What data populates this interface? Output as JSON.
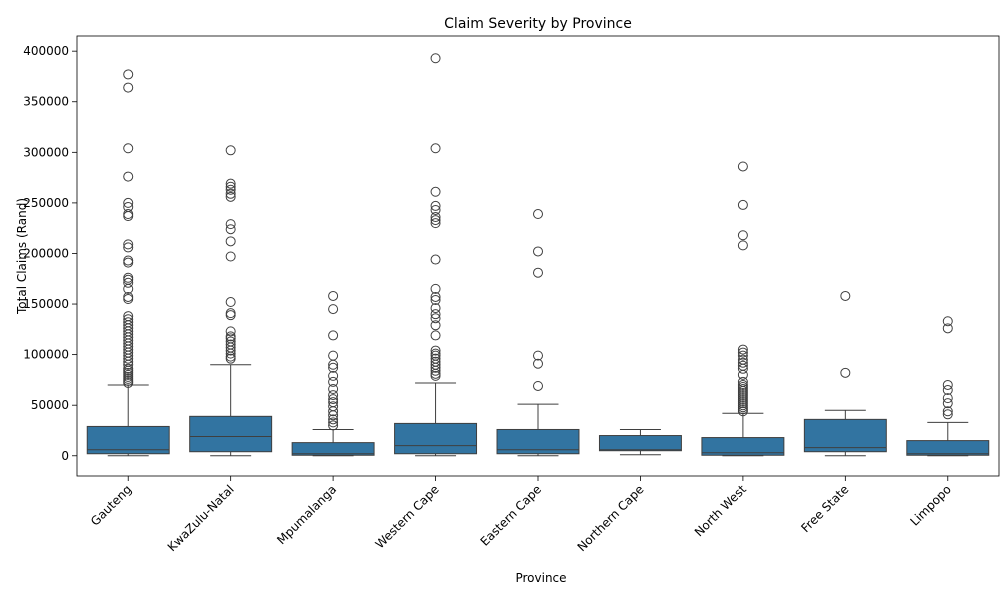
{
  "chart_data": {
    "type": "box",
    "title": "Claim Severity by Province",
    "xlabel": "Province",
    "ylabel": "Total Claims (Rand)",
    "ylim": [
      -20000,
      415000
    ],
    "yticks": [
      0,
      50000,
      100000,
      150000,
      200000,
      250000,
      300000,
      350000,
      400000
    ],
    "box_color": "#3274a1",
    "grid": false,
    "legend": "none",
    "categories": [
      "Gauteng",
      "KwaZulu-Natal",
      "Mpumalanga",
      "Western Cape",
      "Eastern Cape",
      "Northern Cape",
      "North West",
      "Free State",
      "Limpopo"
    ],
    "boxes": [
      {
        "category": "Gauteng",
        "whisker_low": 0,
        "q1": 2000,
        "median": 6000,
        "q3": 29000,
        "whisker_high": 70000,
        "outliers": [
          72000,
          74000,
          76000,
          78000,
          80000,
          82000,
          84000,
          86000,
          90000,
          93000,
          96000,
          99000,
          102000,
          105000,
          108000,
          111000,
          114000,
          117000,
          120000,
          123000,
          126000,
          129000,
          132000,
          135000,
          138000,
          155000,
          157000,
          165000,
          171000,
          174000,
          176000,
          191000,
          193000,
          206000,
          209000,
          237000,
          239000,
          246000,
          250000,
          276000,
          304000,
          364000,
          377000
        ]
      },
      {
        "category": "KwaZulu-Natal",
        "whisker_low": 0,
        "q1": 4000,
        "median": 19000,
        "q3": 39000,
        "whisker_high": 90000,
        "outliers": [
          96000,
          98000,
          101000,
          104000,
          107000,
          110000,
          113000,
          116000,
          118000,
          123000,
          139000,
          141000,
          152000,
          197000,
          212000,
          224000,
          229000,
          256000,
          259000,
          263000,
          266000,
          269000,
          302000
        ]
      },
      {
        "category": "Mpumalanga",
        "whisker_low": 0,
        "q1": 500,
        "median": 2000,
        "q3": 13000,
        "whisker_high": 26000,
        "outliers": [
          30000,
          33000,
          36000,
          40000,
          44000,
          49000,
          53000,
          56000,
          60000,
          66000,
          73000,
          79000,
          87000,
          90000,
          99000,
          119000,
          145000,
          158000
        ]
      },
      {
        "category": "Western Cape",
        "whisker_low": 0,
        "q1": 2000,
        "median": 10000,
        "q3": 32000,
        "whisker_high": 72000,
        "outliers": [
          79000,
          81000,
          84000,
          87000,
          90000,
          93000,
          96000,
          99000,
          101000,
          104000,
          119000,
          129000,
          136000,
          140000,
          146000,
          154000,
          157000,
          165000,
          194000,
          230000,
          233000,
          236000,
          243000,
          247000,
          261000,
          304000,
          393000
        ]
      },
      {
        "category": "Eastern Cape",
        "whisker_low": 0,
        "q1": 2000,
        "median": 6000,
        "q3": 26000,
        "whisker_high": 51000,
        "outliers": [
          69000,
          91000,
          99000,
          181000,
          202000,
          239000
        ]
      },
      {
        "category": "Northern Cape",
        "whisker_low": 1000,
        "q1": 5000,
        "median": 6000,
        "q3": 20000,
        "whisker_high": 26000,
        "outliers": []
      },
      {
        "category": "North West",
        "whisker_low": 0,
        "q1": 500,
        "median": 3000,
        "q3": 18000,
        "whisker_high": 42000,
        "outliers": [
          44000,
          46000,
          48000,
          50000,
          52000,
          54000,
          56000,
          58000,
          60000,
          62000,
          64000,
          66000,
          68000,
          70000,
          73000,
          80000,
          86000,
          89000,
          92000,
          95000,
          99000,
          102000,
          105000,
          208000,
          218000,
          248000,
          286000
        ]
      },
      {
        "category": "Free State",
        "whisker_low": 0,
        "q1": 4000,
        "median": 8000,
        "q3": 36000,
        "whisker_high": 45000,
        "outliers": [
          82000,
          158000
        ]
      },
      {
        "category": "Limpopo",
        "whisker_low": 0,
        "q1": 500,
        "median": 2000,
        "q3": 15000,
        "whisker_high": 33000,
        "outliers": [
          41000,
          44000,
          52000,
          57000,
          65000,
          70000,
          126000,
          133000
        ]
      }
    ]
  }
}
